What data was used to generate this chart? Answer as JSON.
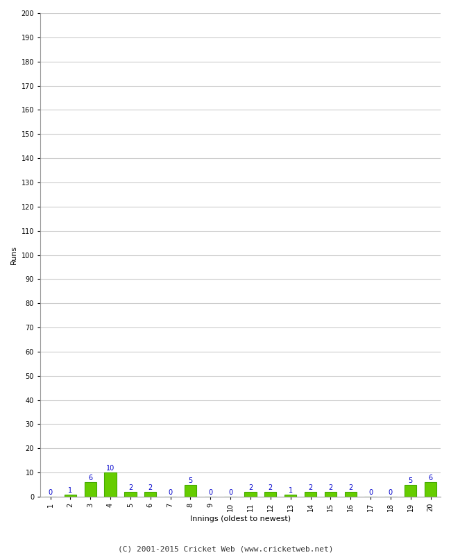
{
  "innings": [
    1,
    2,
    3,
    4,
    5,
    6,
    7,
    8,
    9,
    10,
    11,
    12,
    13,
    14,
    15,
    16,
    17,
    18,
    19,
    20
  ],
  "runs": [
    0,
    1,
    6,
    10,
    2,
    2,
    0,
    5,
    0,
    0,
    2,
    2,
    1,
    2,
    2,
    2,
    0,
    0,
    5,
    6
  ],
  "bar_color": "#66cc00",
  "bar_edge_color": "#44aa00",
  "label_color": "#0000cc",
  "ylabel": "Runs",
  "xlabel": "Innings (oldest to newest)",
  "ylim": [
    0,
    200
  ],
  "ytick_step": 10,
  "background_color": "#ffffff",
  "grid_color": "#cccccc",
  "footer": "(C) 2001-2015 Cricket Web (www.cricketweb.net)",
  "ylabel_fontsize": 8,
  "xlabel_fontsize": 8,
  "label_fontsize": 7,
  "tick_fontsize": 7,
  "footer_fontsize": 8
}
